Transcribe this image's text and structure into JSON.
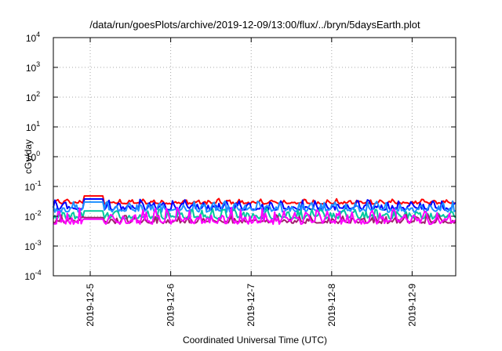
{
  "chart_data": {
    "type": "line",
    "title": "/data/run/goesPlots/archive/2019-12-09/13:00/flux/../bryn/5daysEarth.plot",
    "xlabel": "Coordinated Universal Time (UTC)",
    "ylabel": "cGy/day",
    "y_scale": "log",
    "ylim": [
      0.0001,
      10000
    ],
    "y_ticks": [
      {
        "base": "10",
        "exp": "-4"
      },
      {
        "base": "10",
        "exp": "-3"
      },
      {
        "base": "10",
        "exp": "-2"
      },
      {
        "base": "10",
        "exp": "-1"
      },
      {
        "base": "10",
        "exp": "0"
      },
      {
        "base": "10",
        "exp": "1"
      },
      {
        "base": "10",
        "exp": "2"
      },
      {
        "base": "10",
        "exp": "3"
      },
      {
        "base": "10",
        "exp": "4"
      }
    ],
    "xlim": [
      "2019-12-04T13:00",
      "2019-12-09T13:00"
    ],
    "x_ticks": [
      "2019-12-5",
      "2019-12-6",
      "2019-12-7",
      "2019-12-8",
      "2019-12-9"
    ],
    "x_tick_dates": [
      "2019-12-05T00:00",
      "2019-12-06T00:00",
      "2019-12-07T00:00",
      "2019-12-08T00:00",
      "2019-12-09T00:00"
    ],
    "grid": true,
    "legend": "none",
    "series": [
      {
        "color": "#ff0000",
        "lo": 0.022,
        "hi": 0.04,
        "gap_level": 0.048
      },
      {
        "color": "#0000ff",
        "lo": 0.012,
        "hi": 0.038,
        "gap_level": 0.038
      },
      {
        "color": "#1e90ff",
        "lo": 0.01,
        "hi": 0.035,
        "gap_level": 0.03
      },
      {
        "color": "#00c8a0",
        "lo": 0.006,
        "hi": 0.02,
        "gap_level": 0.015
      },
      {
        "color": "#a0206e",
        "lo": 0.0045,
        "hi": 0.012,
        "gap_level": 0.009
      },
      {
        "color": "#ff00ff",
        "lo": 0.0035,
        "hi": 0.02,
        "gap_level": 0.008
      }
    ],
    "data_gap": [
      "2019-12-04T22:00",
      "2019-12-05T04:00"
    ]
  }
}
